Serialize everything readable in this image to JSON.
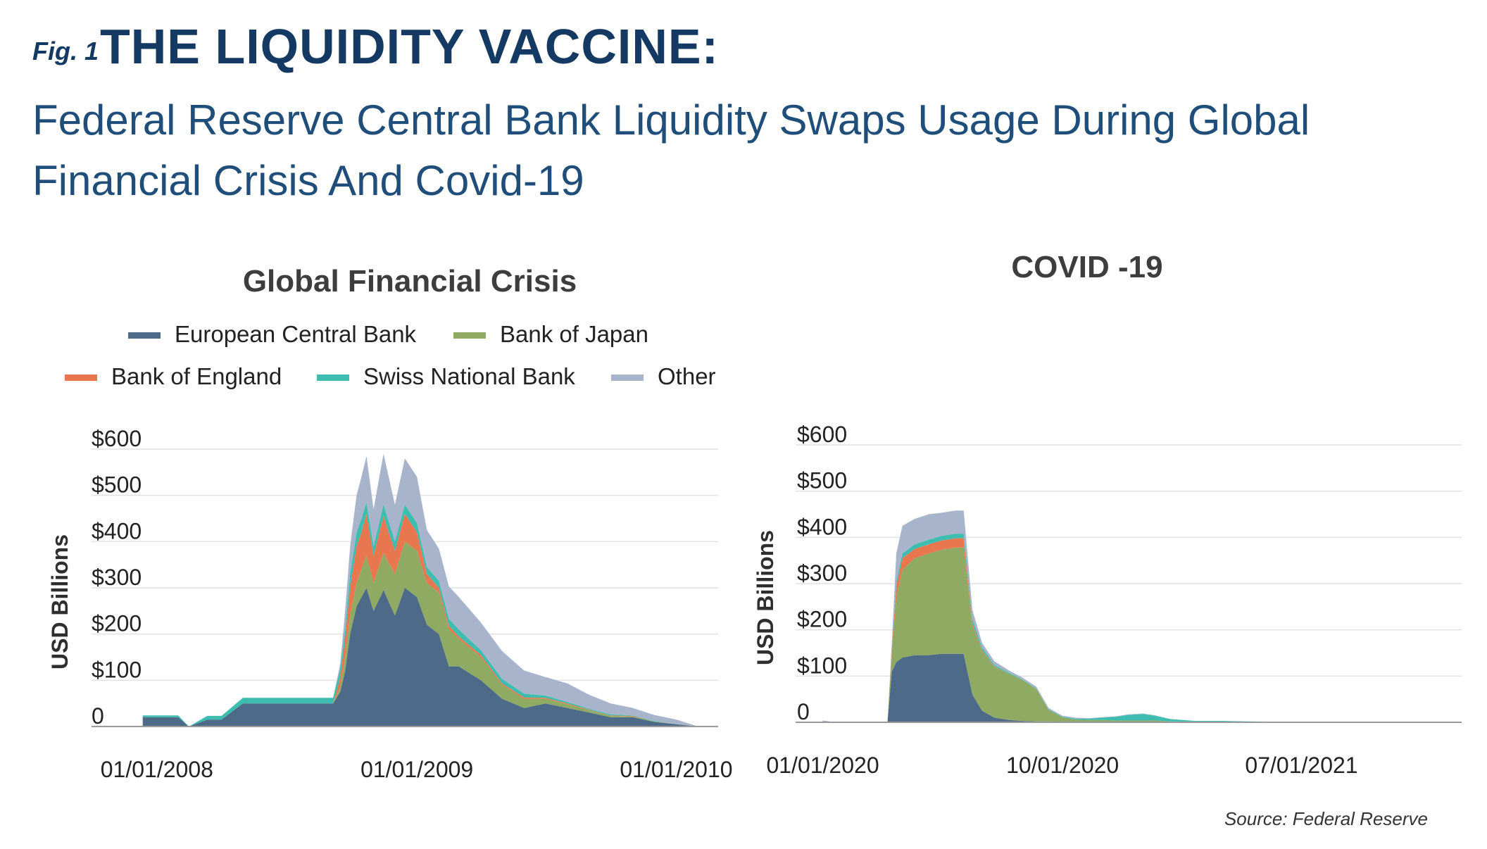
{
  "header": {
    "fig_label": "Fig. 1",
    "title": "THE LIQUIDITY VACCINE:",
    "subtitle": "Federal Reserve Central Bank Liquidity Swaps Usage During Global Financial Crisis And Covid-19"
  },
  "source": "Source:  Federal Reserve",
  "colors": {
    "European Central Bank": "#4d6a88",
    "Bank of Japan": "#8faa62",
    "Bank of England": "#e8764e",
    "Swiss National Bank": "#3dbdb0",
    "Other": "#a8b4cb"
  },
  "chart_data": [
    {
      "type": "area",
      "stacked": true,
      "title": "Global Financial Crisis",
      "ylabel": "USD Billions",
      "ylim": [
        0,
        600
      ],
      "yticks": [
        "0",
        "$100",
        "$200",
        "$300",
        "$400",
        "$500",
        "$600"
      ],
      "xrange": [
        "2007-10-01",
        "2010-03-01"
      ],
      "xticks": [
        {
          "date": "2008-01-01",
          "label": "01/01/2008"
        },
        {
          "date": "2009-01-01",
          "label": "01/01/2009"
        },
        {
          "date": "2010-01-01",
          "label": "01/01/2010"
        }
      ],
      "legend": {
        "placement": "top",
        "entries": [
          "European Central Bank",
          "Bank of Japan",
          "Bank of England",
          "Swiss National Bank",
          "Other"
        ]
      },
      "x": [
        "2007-12-12",
        "2008-01-31",
        "2008-02-15",
        "2008-03-12",
        "2008-04-01",
        "2008-05-01",
        "2008-06-01",
        "2008-08-01",
        "2008-09-05",
        "2008-09-15",
        "2008-09-22",
        "2008-09-29",
        "2008-10-08",
        "2008-10-15",
        "2008-10-22",
        "2008-11-01",
        "2008-11-15",
        "2008-12-01",
        "2008-12-15",
        "2009-01-01",
        "2009-01-15",
        "2009-02-01",
        "2009-02-15",
        "2009-03-01",
        "2009-04-01",
        "2009-05-01",
        "2009-06-01",
        "2009-07-01",
        "2009-08-01",
        "2009-09-01",
        "2009-10-01",
        "2009-11-01",
        "2009-12-01",
        "2010-01-01",
        "2010-02-01"
      ],
      "series": [
        {
          "name": "European Central Bank",
          "values": [
            20,
            20,
            0,
            15,
            15,
            50,
            50,
            50,
            50,
            75,
            120,
            200,
            260,
            280,
            300,
            250,
            295,
            240,
            300,
            280,
            220,
            200,
            130,
            130,
            100,
            60,
            40,
            50,
            40,
            30,
            20,
            20,
            10,
            5,
            0
          ]
        },
        {
          "name": "Bank of Japan",
          "values": [
            0,
            0,
            0,
            0,
            0,
            0,
            0,
            0,
            0,
            10,
            30,
            40,
            50,
            60,
            70,
            60,
            80,
            90,
            100,
            100,
            90,
            90,
            80,
            60,
            50,
            30,
            20,
            10,
            8,
            5,
            3,
            2,
            1,
            0,
            0
          ]
        },
        {
          "name": "Bank of England",
          "values": [
            0,
            0,
            0,
            0,
            0,
            0,
            0,
            0,
            0,
            20,
            40,
            60,
            80,
            80,
            90,
            60,
            80,
            50,
            60,
            40,
            20,
            10,
            8,
            5,
            5,
            3,
            3,
            2,
            2,
            1,
            1,
            1,
            0,
            0,
            0
          ]
        },
        {
          "name": "Swiss National Bank",
          "values": [
            4,
            4,
            0,
            8,
            8,
            12,
            12,
            12,
            12,
            20,
            20,
            30,
            30,
            30,
            25,
            20,
            25,
            20,
            20,
            20,
            15,
            15,
            15,
            15,
            10,
            10,
            8,
            5,
            3,
            2,
            2,
            1,
            1,
            0,
            0
          ]
        },
        {
          "name": "Other",
          "values": [
            0,
            0,
            0,
            0,
            0,
            0,
            0,
            0,
            0,
            10,
            40,
            60,
            80,
            90,
            100,
            80,
            110,
            80,
            100,
            100,
            80,
            70,
            70,
            70,
            60,
            60,
            50,
            40,
            40,
            30,
            24,
            16,
            13,
            10,
            0
          ]
        }
      ]
    },
    {
      "type": "area",
      "stacked": true,
      "title": "COVID -19",
      "ylabel": "USD Billions",
      "ylim": [
        0,
        600
      ],
      "yticks": [
        "0",
        "$100",
        "$200",
        "$300",
        "$400",
        "$500",
        "$600"
      ],
      "xrange": [
        "2019-12-01",
        "2021-12-31"
      ],
      "xticks": [
        {
          "date": "2020-01-01",
          "label": "01/01/2020"
        },
        {
          "date": "2020-10-01",
          "label": "10/01/2020"
        },
        {
          "date": "2021-07-01",
          "label": "07/01/2021"
        }
      ],
      "x": [
        "2020-01-01",
        "2020-01-15",
        "2020-03-15",
        "2020-03-20",
        "2020-03-25",
        "2020-04-01",
        "2020-04-15",
        "2020-05-01",
        "2020-05-15",
        "2020-06-01",
        "2020-06-10",
        "2020-06-20",
        "2020-07-01",
        "2020-07-15",
        "2020-08-01",
        "2020-08-15",
        "2020-09-01",
        "2020-09-15",
        "2020-10-01",
        "2020-10-15",
        "2020-11-01",
        "2020-11-15",
        "2020-12-01",
        "2020-12-15",
        "2021-01-01",
        "2021-01-15",
        "2021-02-01",
        "2021-03-01",
        "2021-04-01",
        "2021-05-01",
        "2021-06-01",
        "2021-07-01",
        "2021-12-01"
      ],
      "series": [
        {
          "name": "European Central Bank",
          "values": [
            0,
            0,
            0,
            110,
            130,
            140,
            145,
            145,
            148,
            148,
            148,
            60,
            25,
            10,
            5,
            3,
            2,
            2,
            1,
            1,
            1,
            1,
            1,
            1,
            1,
            1,
            0,
            0,
            0,
            0,
            0,
            0,
            0
          ]
        },
        {
          "name": "Bank of Japan",
          "values": [
            0,
            0,
            0,
            40,
            140,
            190,
            210,
            220,
            225,
            230,
            230,
            150,
            130,
            110,
            100,
            90,
            70,
            25,
            10,
            5,
            4,
            4,
            3,
            3,
            3,
            3,
            2,
            1,
            0,
            0,
            0,
            0,
            0
          ]
        },
        {
          "name": "Bank of England",
          "values": [
            0,
            0,
            0,
            10,
            25,
            25,
            20,
            20,
            20,
            20,
            20,
            5,
            2,
            1,
            0,
            0,
            0,
            0,
            0,
            0,
            0,
            0,
            0,
            0,
            0,
            0,
            0,
            0,
            0,
            0,
            0,
            0,
            0
          ]
        },
        {
          "name": "Swiss National Bank",
          "values": [
            0,
            0,
            0,
            3,
            10,
            10,
            10,
            10,
            10,
            10,
            10,
            8,
            5,
            3,
            2,
            1,
            1,
            1,
            1,
            2,
            3,
            5,
            8,
            12,
            14,
            10,
            5,
            2,
            3,
            2,
            1,
            0,
            0
          ]
        },
        {
          "name": "Other",
          "values": [
            4,
            0,
            0,
            10,
            60,
            60,
            55,
            55,
            50,
            50,
            50,
            20,
            10,
            8,
            5,
            4,
            4,
            3,
            2,
            2,
            1,
            1,
            1,
            1,
            1,
            1,
            0,
            0,
            0,
            0,
            0,
            0,
            0
          ]
        }
      ]
    }
  ]
}
